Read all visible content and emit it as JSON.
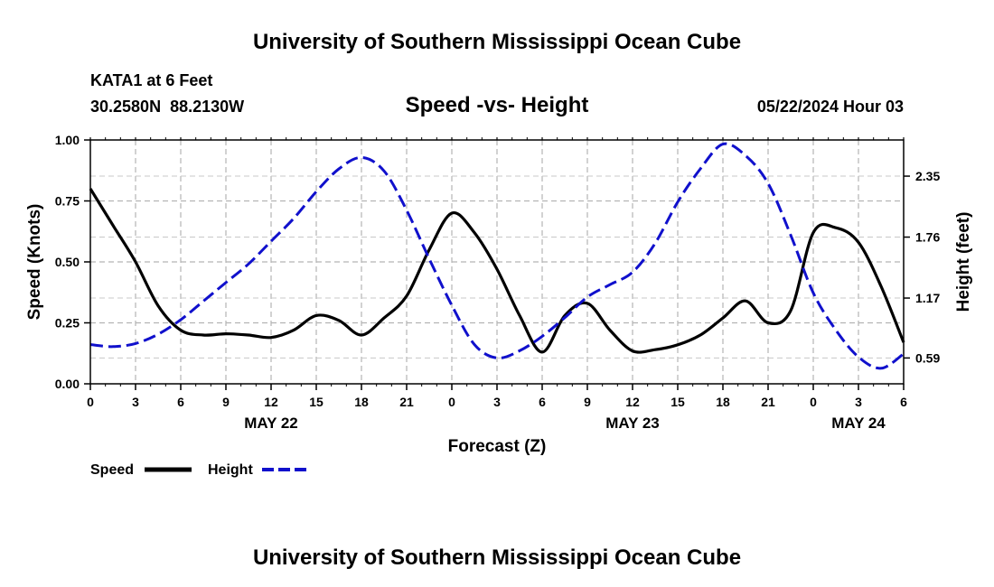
{
  "chart_data": {
    "type": "line",
    "title": "University of Southern Mississippi Ocean Cube",
    "footer_title": "University of Southern Mississippi Ocean Cube",
    "station": "KATA1 at 6 Feet",
    "coords": "30.2580N  88.2130W",
    "subtitle": "Speed -vs- Height",
    "timestamp": "05/22/2024 Hour 03",
    "xlabel": "Forecast (Z)",
    "ylabel_left": "Speed (Knots)",
    "ylabel_right": "Height (feet)",
    "x_range": [
      0,
      54
    ],
    "y_left_range": [
      0,
      1
    ],
    "y_right_range": [
      0.34,
      2.7
    ],
    "x_tick_values": [
      0,
      3,
      6,
      9,
      12,
      15,
      18,
      21,
      24,
      27,
      30,
      33,
      36,
      39,
      42,
      45,
      48,
      51,
      54
    ],
    "x_tick_labels": [
      "0",
      "3",
      "6",
      "9",
      "12",
      "15",
      "18",
      "21",
      "0",
      "3",
      "6",
      "9",
      "12",
      "15",
      "18",
      "21",
      "0",
      "3",
      "6"
    ],
    "y_left_ticks": [
      "0.00",
      "0.25",
      "0.50",
      "0.75",
      "1.00"
    ],
    "y_left_tick_values": [
      0,
      0.25,
      0.5,
      0.75,
      1.0
    ],
    "y_right_ticks": [
      "0.59",
      "1.17",
      "1.76",
      "2.35"
    ],
    "y_right_tick_values": [
      0.59,
      1.17,
      1.76,
      2.35
    ],
    "dates": [
      {
        "label": "MAY 22",
        "x": 12
      },
      {
        "label": "MAY 23",
        "x": 36
      },
      {
        "label": "MAY 24",
        "x": 51
      }
    ],
    "grid": true,
    "legend": [
      {
        "name": "Speed",
        "color": "#000000",
        "style": "solid"
      },
      {
        "name": "Height",
        "color": "#1010cc",
        "style": "dashed"
      }
    ],
    "series": [
      {
        "name": "Speed",
        "axis": "left",
        "color": "#000000",
        "x": [
          0,
          1.5,
          3,
          4.5,
          6,
          7.5,
          9,
          10.5,
          12,
          13.5,
          15,
          16.5,
          18,
          19.5,
          21,
          22.5,
          24,
          25.5,
          27,
          28.5,
          30,
          31.5,
          33,
          34.5,
          36,
          37.5,
          39,
          40.5,
          42,
          43.5,
          45,
          46.5,
          48,
          49.5,
          51,
          52.5,
          54
        ],
        "values": [
          0.8,
          0.65,
          0.5,
          0.32,
          0.22,
          0.2,
          0.205,
          0.2,
          0.19,
          0.22,
          0.28,
          0.26,
          0.2,
          0.27,
          0.36,
          0.55,
          0.7,
          0.62,
          0.47,
          0.28,
          0.13,
          0.28,
          0.33,
          0.22,
          0.135,
          0.14,
          0.16,
          0.2,
          0.27,
          0.34,
          0.25,
          0.3,
          0.62,
          0.64,
          0.58,
          0.4,
          0.17
        ]
      },
      {
        "name": "Height",
        "axis": "right",
        "color": "#1010cc",
        "x": [
          0,
          1.5,
          3,
          4.5,
          6,
          7.5,
          9,
          10.5,
          12,
          13.5,
          15,
          16.5,
          18,
          19.5,
          21,
          22.5,
          24,
          25.5,
          27,
          28.5,
          30,
          31.5,
          33,
          34.5,
          36,
          37.5,
          39,
          40.5,
          42,
          43.5,
          45,
          46.5,
          48,
          49.5,
          51,
          52.5,
          54
        ],
        "values": [
          0.72,
          0.7,
          0.73,
          0.82,
          0.96,
          1.14,
          1.32,
          1.5,
          1.72,
          1.94,
          2.2,
          2.42,
          2.53,
          2.4,
          2.02,
          1.55,
          1.1,
          0.72,
          0.59,
          0.66,
          0.8,
          0.98,
          1.18,
          1.3,
          1.42,
          1.7,
          2.1,
          2.42,
          2.66,
          2.55,
          2.28,
          1.78,
          1.22,
          0.86,
          0.6,
          0.49,
          0.63
        ]
      }
    ]
  }
}
